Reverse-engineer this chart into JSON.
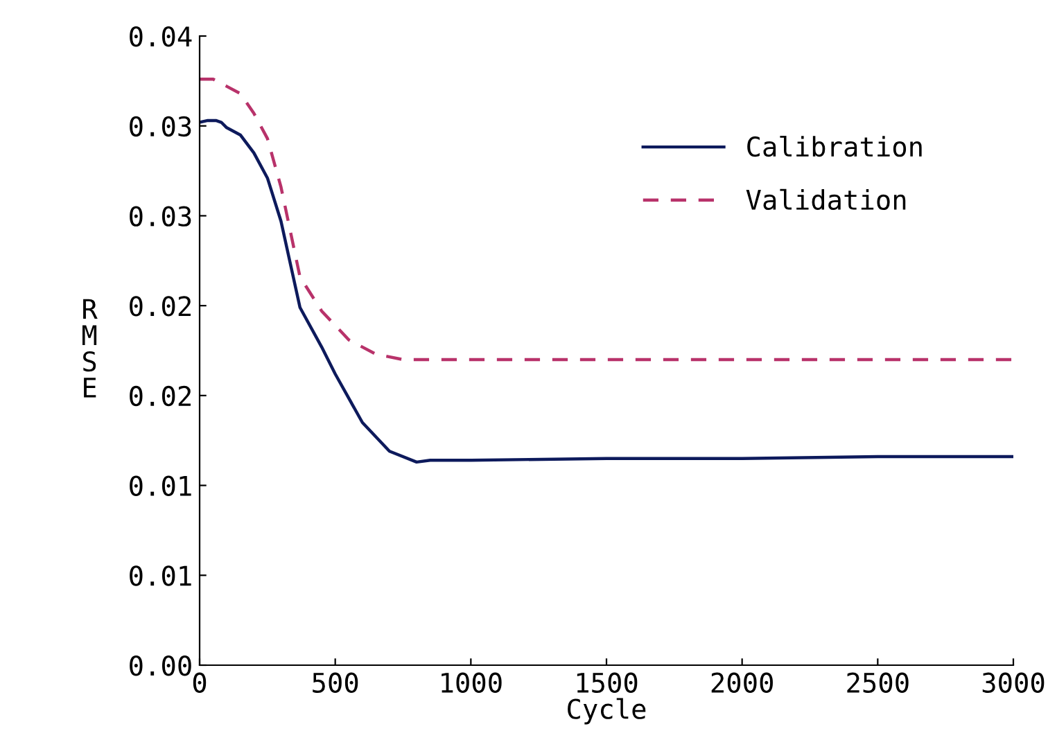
{
  "chart_data": {
    "type": "line",
    "xlabel": "Cycle",
    "ylabel": "R\nM\nS\nE",
    "xlim": [
      0,
      3000
    ],
    "xticks": [
      0,
      500,
      1000,
      1500,
      2000,
      2500,
      3000
    ],
    "ylim": [
      0,
      0.035
    ],
    "yticks": [
      {
        "value": 0,
        "label": "0.00"
      },
      {
        "value": 0.005,
        "label": "0.01"
      },
      {
        "value": 0.01,
        "label": "0.01"
      },
      {
        "value": 0.015,
        "label": "0.02"
      },
      {
        "value": 0.02,
        "label": "0.02"
      },
      {
        "value": 0.025,
        "label": "0.03"
      },
      {
        "value": 0.03,
        "label": "0.03"
      },
      {
        "value": 0.035,
        "label": "0.04"
      }
    ],
    "grid": false,
    "legend": "top right",
    "marker": "none",
    "series": [
      {
        "name": "Calibration",
        "color": "#0d1a5c",
        "line_style": "solid",
        "x": [
          0,
          30,
          60,
          80,
          100,
          150,
          200,
          250,
          300,
          370,
          450,
          500,
          600,
          700,
          800,
          850,
          1000,
          1500,
          2000,
          2500,
          3000
        ],
        "values": [
          0.0302,
          0.0303,
          0.0303,
          0.0302,
          0.0299,
          0.0295,
          0.0285,
          0.0271,
          0.0247,
          0.0199,
          0.0177,
          0.0162,
          0.0135,
          0.0119,
          0.0113,
          0.0114,
          0.0114,
          0.0115,
          0.0115,
          0.0116,
          0.0116
        ]
      },
      {
        "name": "Validation",
        "color": "#b8326a",
        "line_style": "dashed",
        "x": [
          0,
          50,
          100,
          150,
          200,
          250,
          300,
          370,
          450,
          550,
          650,
          750,
          1000,
          2000,
          3000
        ],
        "values": [
          0.0326,
          0.0326,
          0.0322,
          0.0318,
          0.0307,
          0.0293,
          0.0266,
          0.0216,
          0.0197,
          0.0181,
          0.0173,
          0.017,
          0.017,
          0.017,
          0.017
        ]
      }
    ]
  }
}
